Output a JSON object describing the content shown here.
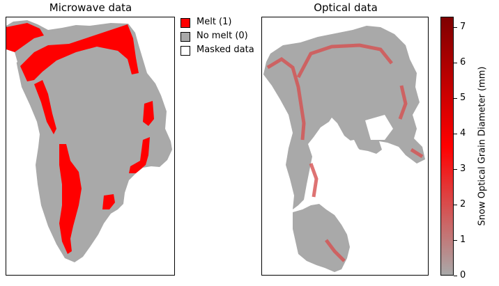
{
  "panels": {
    "left_title": "Microwave data",
    "right_title": "Optical data"
  },
  "legend": {
    "items": [
      {
        "label": "Melt (1)",
        "color": "#ff0000"
      },
      {
        "label": "No melt (0)",
        "color": "#a9a9a9"
      },
      {
        "label": "Masked data",
        "color": "#ffffff"
      }
    ]
  },
  "colorbar": {
    "label": "Snow Optical Grain Diameter (mm)",
    "ticks": [
      "0",
      "1",
      "2",
      "3",
      "4",
      "5",
      "6",
      "7"
    ],
    "min": 0,
    "max": 7.3,
    "colors": [
      "#a9a9a9",
      "#ff0000",
      "#7f0000"
    ]
  },
  "chart_data": [
    {
      "type": "heatmap",
      "title": "Microwave data",
      "categories": [
        "Melt (1)",
        "No melt (0)",
        "Masked data"
      ],
      "colors": {
        "melt": "#ff0000",
        "no_melt": "#a9a9a9",
        "masked": "#ffffff"
      }
    },
    {
      "type": "heatmap",
      "title": "Optical data",
      "colorbar_label": "Snow Optical Grain Diameter (mm)",
      "range": [
        0,
        7.3
      ]
    }
  ]
}
